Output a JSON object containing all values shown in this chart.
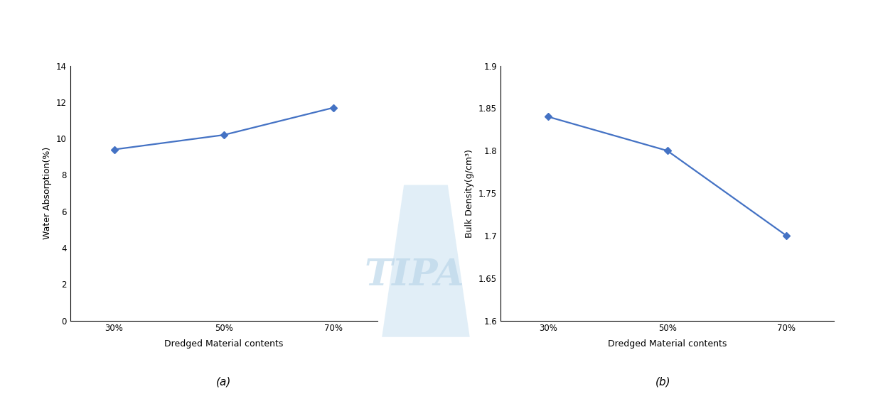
{
  "plot_a": {
    "x_labels": [
      "30%",
      "50%",
      "70%"
    ],
    "x_values": [
      0,
      1,
      2
    ],
    "y_values": [
      9.4,
      10.2,
      11.7
    ],
    "ylabel": "Water Absorption(%)",
    "xlabel": "Dredged Material contents",
    "ylim": [
      0,
      14
    ],
    "yticks": [
      0,
      2,
      4,
      6,
      8,
      10,
      12,
      14
    ],
    "caption": "(a)"
  },
  "plot_b": {
    "x_labels": [
      "30%",
      "50%",
      "70%"
    ],
    "x_values": [
      0,
      1,
      2
    ],
    "y_values": [
      1.84,
      1.8,
      1.7
    ],
    "ylabel": "Bulk Density(g/cm³)",
    "xlabel": "Dredged Material contents",
    "ylim": [
      1.6,
      1.9
    ],
    "yticks": [
      1.6,
      1.65,
      1.7,
      1.75,
      1.8,
      1.85,
      1.9
    ],
    "caption": "(b)"
  },
  "line_color": "#4472C4",
  "marker": "D",
  "marker_size": 5,
  "line_width": 1.6,
  "font_size_label": 9,
  "font_size_tick": 8.5,
  "font_size_caption": 11,
  "background_color": "#ffffff",
  "tipa_color": "#b8d4e8",
  "tipa_alpha": 0.65,
  "tipa_fontsize": 38
}
